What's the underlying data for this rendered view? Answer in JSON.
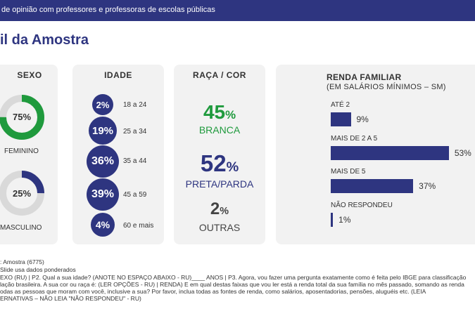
{
  "header": {
    "subtitle": "de opinião com professores e professoras de escolas públicas"
  },
  "page_title": "il da Amostra",
  "sexo": {
    "title": "SEXO",
    "feminino": {
      "pct": "75%",
      "label": "FEMININO",
      "value": 75,
      "color": "#1f9a3d"
    },
    "masculino": {
      "pct": "25%",
      "label": "MASCULINO",
      "value": 25,
      "color": "#2e3580"
    }
  },
  "idade": {
    "title": "IDADE",
    "items": [
      {
        "pct": "2%",
        "label": "18 a 24",
        "value": 2
      },
      {
        "pct": "19%",
        "label": "25 a 34",
        "value": 19
      },
      {
        "pct": "36%",
        "label": "35 a 44",
        "value": 36
      },
      {
        "pct": "39%",
        "label": "45 a 59",
        "value": 39
      },
      {
        "pct": "4%",
        "label": "60 e mais",
        "value": 4
      }
    ]
  },
  "raca": {
    "title": "RAÇA / COR",
    "items": [
      {
        "num": "45",
        "sym": "%",
        "label": "BRANCA",
        "color": "#1f9a3d"
      },
      {
        "num": "52",
        "sym": "%",
        "label": "PRETA/PARDA",
        "color": "#2e3580"
      },
      {
        "num": "2",
        "sym": "%",
        "label": "OUTRAS",
        "color": "#444444"
      }
    ]
  },
  "renda": {
    "title_1": "RENDA FAMILIAR",
    "title_2": "(EM SALÁRIOS MÍNIMOS – SM)"
  },
  "chart_data": {
    "type": "bar",
    "title": "RENDA FAMILIAR (EM SALÁRIOS MÍNIMOS – SM)",
    "categories": [
      "ATÉ 2",
      "MAIS DE 2 A 5",
      "MAIS DE 5",
      "NÃO RESPONDEU"
    ],
    "values": [
      9,
      53,
      37,
      1
    ],
    "value_labels": [
      "9%",
      "53%",
      "37%",
      "1%"
    ],
    "orientation": "horizontal",
    "color": "#2e3580"
  },
  "footer": {
    "line1": ": Amostra (6775)",
    "line2": "Slide usa dados ponderados",
    "line3": "EXO (RU) | P2. Qual a sua idade? (ANOTE NO ESPAÇO ABAIXO - RU)____ ANOS | P3. Agora, vou fazer uma pergunta exatamente como é feita pelo IBGE para classificação",
    "line4": "lação brasileira. A sua cor ou raça é: (LER OPÇÕES - RU) | RENDA) E em qual destas faixas que vou ler está a renda total da sua família no mês passado, somando as renda",
    "line5": "odas as pessoas que moram com você, inclusive a sua? Por favor, inclua todas as fontes de renda, como salários, aposentadorias, pensões, aluguéis etc.  (LEIA",
    "line6": "ERNATIVAS – NÃO LEIA \"NÃO RESPONDEU\" - RU)"
  }
}
